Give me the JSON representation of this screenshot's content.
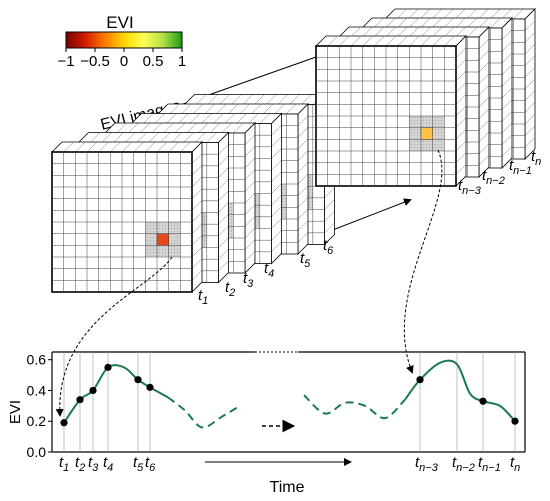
{
  "colorbar": {
    "title": "EVI",
    "ticks": [
      "−1",
      "−0.5",
      "0",
      "0.5",
      "1"
    ],
    "colors": [
      "#7a0000",
      "#d11b00",
      "#ff7a00",
      "#ffd500",
      "#ffff55",
      "#b7e04a",
      "#1b9a1b"
    ]
  },
  "stack": {
    "title": "EVI images",
    "left_labels": [
      {
        "base": "t",
        "sub": "1"
      },
      {
        "base": "t",
        "sub": "2"
      },
      {
        "base": "t",
        "sub": "3"
      },
      {
        "base": "t",
        "sub": "4"
      },
      {
        "base": "t",
        "sub": "5"
      },
      {
        "base": "t",
        "sub": "6"
      }
    ],
    "right_labels": [
      {
        "base": "t",
        "sub": "n−3"
      },
      {
        "base": "t",
        "sub": "n−2"
      },
      {
        "base": "t",
        "sub": "n−1"
      },
      {
        "base": "t",
        "sub": "n"
      }
    ],
    "left_pixel_colors": [
      "#e44a1c",
      "#f7a52e",
      "#ffd84a",
      "#33bb33",
      "#ffd84a",
      "#ffd84a"
    ],
    "right_pixel_colors": [
      "#ffc24a",
      "#ffb83a",
      "#ff9a2a",
      "#d8271b"
    ]
  },
  "chart_data": {
    "type": "line",
    "xlabel": "Time",
    "ylabel": "EVI",
    "ylim": [
      0.0,
      0.65
    ],
    "yticks": [
      "0.0",
      "0.2",
      "0.4",
      "0.6"
    ],
    "xticks": [
      {
        "base": "t",
        "sub": "1"
      },
      {
        "base": "t",
        "sub": "2"
      },
      {
        "base": "t",
        "sub": "3"
      },
      {
        "base": "t",
        "sub": "4"
      },
      {
        "base": "t",
        "sub": "5"
      },
      {
        "base": "t",
        "sub": "6"
      },
      {
        "base": "t",
        "sub": "n−3"
      },
      {
        "base": "t",
        "sub": "n−2"
      },
      {
        "base": "t",
        "sub": "n−1"
      },
      {
        "base": "t",
        "sub": "n"
      }
    ],
    "series": [
      {
        "values": [
          0.19,
          0.34,
          0.4,
          0.55,
          0.47,
          0.42,
          0.47,
          0.57,
          0.33,
          0.2
        ]
      }
    ],
    "line_color": "#1a7a50"
  }
}
